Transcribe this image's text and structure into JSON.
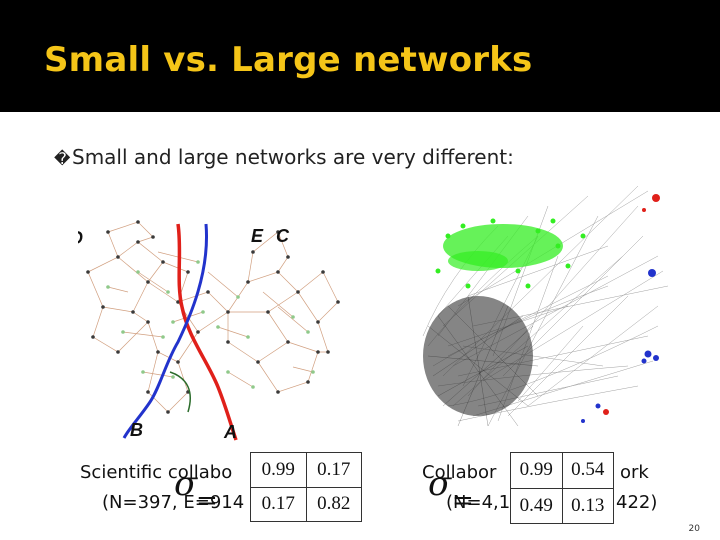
{
  "slide": {
    "title": "Small vs. Large networks",
    "bullet_glyph": "�",
    "bullet_text": "Small and large networks are very different:",
    "page_number": "20"
  },
  "left_panel": {
    "region_labels": [
      "D",
      "E",
      "C",
      "B",
      "A"
    ],
    "caption_line1": "Scientific collabo",
    "caption_line2": "(N=397, E=914",
    "sigma_symbol": "σ",
    "equals": "=",
    "matrix": [
      [
        "0.99",
        "0.17"
      ],
      [
        "0.17",
        "0.82"
      ]
    ]
  },
  "right_panel": {
    "caption_line1_left": "Collabor",
    "caption_line1_right": "ork",
    "caption_line2_left": "(N=4,1",
    "caption_line2_right": "422)",
    "sigma_symbol": "σ",
    "equals": "=",
    "matrix": [
      [
        "0.99",
        "0.54"
      ],
      [
        "0.49",
        "0.13"
      ]
    ]
  },
  "colors": {
    "title_bar": "#000000",
    "title_text": "#f5c518",
    "cut_red": "#e0201a",
    "cut_blue": "#2233cc",
    "cut_green": "#2a6b2a",
    "core_green": "#33ee22"
  }
}
